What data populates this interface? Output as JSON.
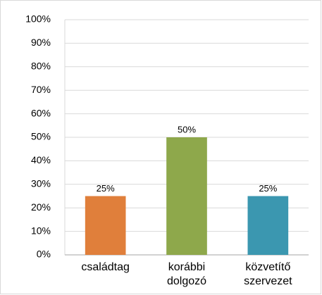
{
  "chart_data": {
    "type": "bar",
    "categories": [
      "családtag",
      "korábbi dolgozó",
      "közvetítő szervezet"
    ],
    "values": [
      25,
      50,
      25
    ],
    "value_labels": [
      "25%",
      "50%",
      "25%"
    ],
    "colors": [
      "#e07f3b",
      "#8ea84b",
      "#3b97b0"
    ],
    "ylim": [
      0,
      100
    ],
    "yticks": [
      {
        "value": 0,
        "label": "0%"
      },
      {
        "value": 10,
        "label": "10%"
      },
      {
        "value": 20,
        "label": "20%"
      },
      {
        "value": 30,
        "label": "30%"
      },
      {
        "value": 40,
        "label": "40%"
      },
      {
        "value": 50,
        "label": "50%"
      },
      {
        "value": 60,
        "label": "60%"
      },
      {
        "value": 70,
        "label": "70%"
      },
      {
        "value": 80,
        "label": "80%"
      },
      {
        "value": 90,
        "label": "90%"
      },
      {
        "value": 100,
        "label": "100%"
      }
    ],
    "grid": true
  }
}
